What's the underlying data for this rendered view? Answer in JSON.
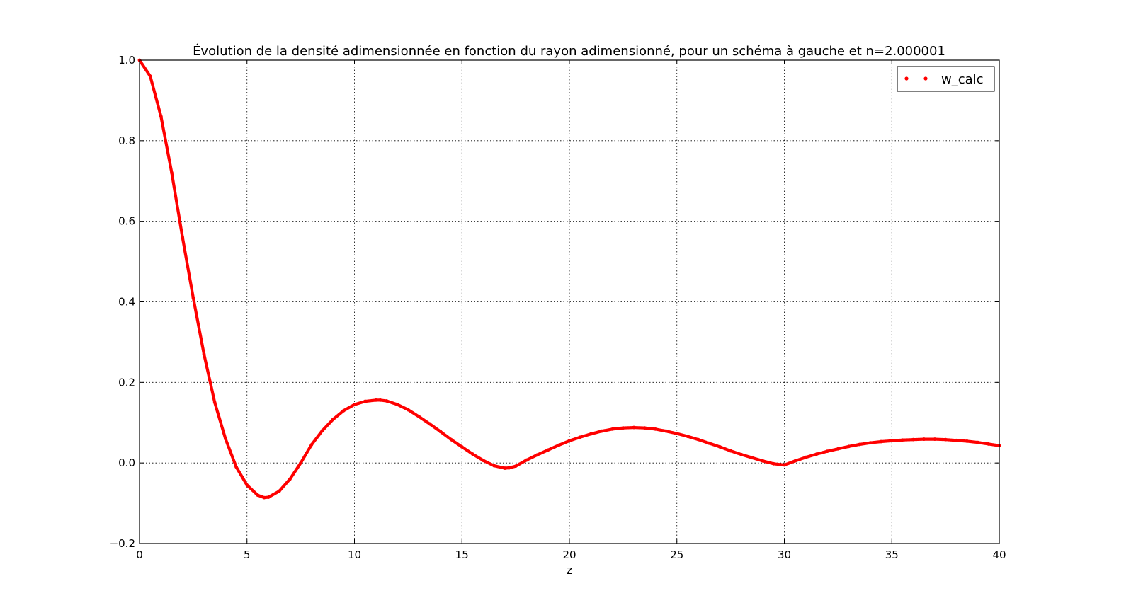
{
  "chart_data": {
    "type": "scatter",
    "title": "Évolution de la densité adimensionnée en fonction du rayon adimensionné, pour un schéma à gauche et n=2.000001",
    "xlabel": "z",
    "ylabel": "",
    "xlim": [
      0,
      40
    ],
    "ylim": [
      -0.2,
      1.0
    ],
    "xticks": [
      "0",
      "5",
      "10",
      "15",
      "20",
      "25",
      "30",
      "35",
      "40"
    ],
    "yticks": [
      "−0.2",
      "0.0",
      "0.2",
      "0.4",
      "0.6",
      "0.8",
      "1.0"
    ],
    "grid": true,
    "legend_position": "top-right",
    "series": [
      {
        "name": "w_calc",
        "color": "#ff0000",
        "marker": "dot",
        "x": [
          0,
          0.5,
          1,
          1.5,
          2,
          2.5,
          3,
          3.5,
          4,
          4.5,
          5,
          5.5,
          5.8,
          6,
          6.5,
          7,
          7.5,
          8,
          8.5,
          9,
          9.5,
          10,
          10.5,
          11,
          11.2,
          11.5,
          12,
          12.5,
          13,
          13.5,
          14,
          14.5,
          15,
          15.5,
          16,
          16.5,
          17,
          17.2,
          17.5,
          18,
          18.5,
          19,
          19.5,
          20,
          20.5,
          21,
          21.5,
          22,
          22.5,
          23,
          23.5,
          24,
          24.5,
          25,
          25.5,
          26,
          26.5,
          27,
          27.5,
          28,
          28.5,
          29,
          29.5,
          30,
          30.5,
          31,
          31.5,
          32,
          32.5,
          33,
          33.5,
          34,
          34.5,
          35,
          35.5,
          36,
          36.5,
          37,
          37.5,
          38,
          38.5,
          39,
          39.5,
          40
        ],
        "values": [
          1.0,
          0.96,
          0.86,
          0.72,
          0.56,
          0.41,
          0.27,
          0.15,
          0.06,
          -0.01,
          -0.055,
          -0.08,
          -0.086,
          -0.085,
          -0.07,
          -0.04,
          0.0,
          0.045,
          0.08,
          0.108,
          0.13,
          0.145,
          0.153,
          0.156,
          0.156,
          0.154,
          0.145,
          0.132,
          0.115,
          0.097,
          0.078,
          0.058,
          0.04,
          0.022,
          0.006,
          -0.007,
          -0.013,
          -0.012,
          -0.008,
          0.007,
          0.02,
          0.032,
          0.044,
          0.055,
          0.064,
          0.072,
          0.079,
          0.084,
          0.087,
          0.088,
          0.087,
          0.084,
          0.079,
          0.073,
          0.066,
          0.058,
          0.049,
          0.04,
          0.03,
          0.021,
          0.013,
          0.005,
          -0.002,
          -0.005,
          0.005,
          0.014,
          0.022,
          0.029,
          0.035,
          0.041,
          0.046,
          0.05,
          0.053,
          0.055,
          0.057,
          0.058,
          0.059,
          0.059,
          0.058,
          0.056,
          0.054,
          0.051,
          0.047,
          0.043
        ]
      }
    ]
  }
}
